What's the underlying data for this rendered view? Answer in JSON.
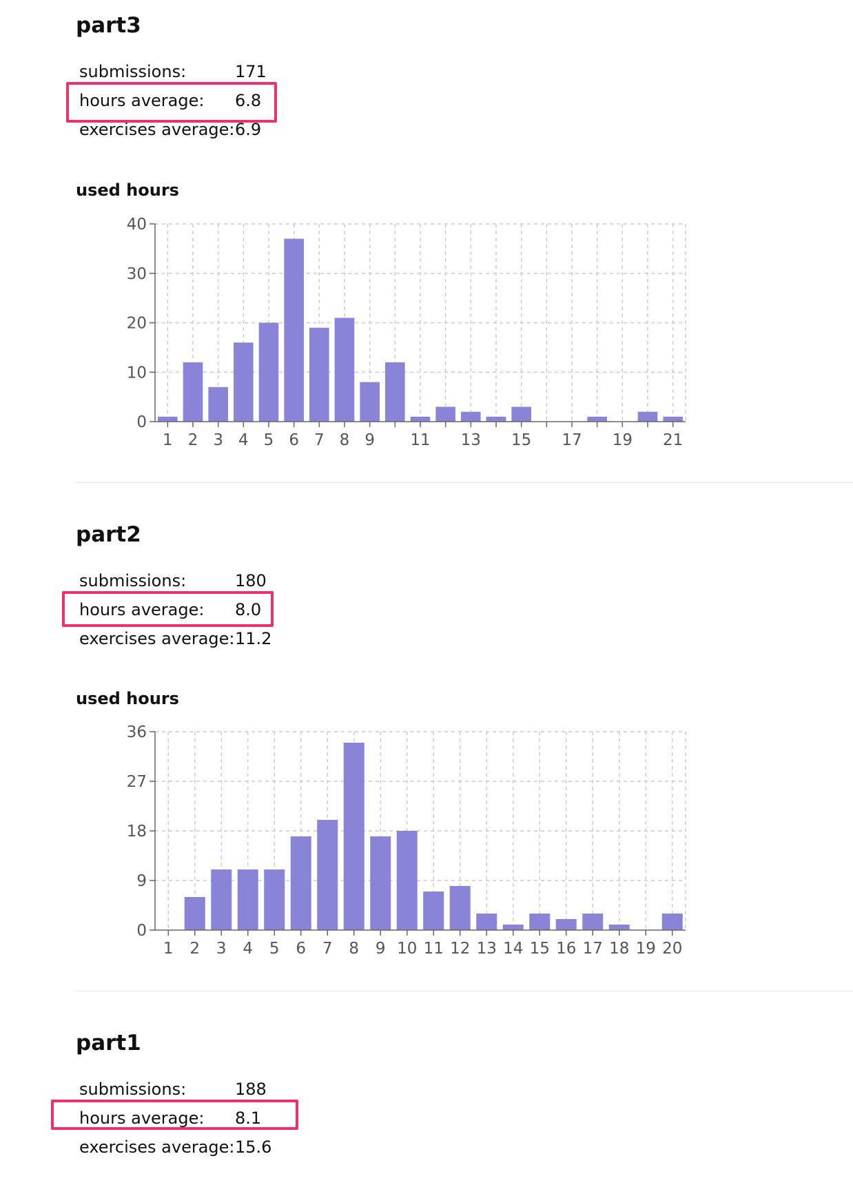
{
  "parts": [
    {
      "title": "part3",
      "stats": [
        {
          "label": "submissions:",
          "value": "171"
        },
        {
          "label": "hours average:",
          "value": "6.8"
        },
        {
          "label": "exercises average:",
          "value": "6.9"
        }
      ],
      "highlighted_stat": "hours average:"
    },
    {
      "title": "part2",
      "stats": [
        {
          "label": "submissions:",
          "value": "180"
        },
        {
          "label": "hours average:",
          "value": "8.0"
        },
        {
          "label": "exercises average:",
          "value": "11.2"
        }
      ],
      "highlighted_stat": "hours average:"
    },
    {
      "title": "part1",
      "stats": [
        {
          "label": "submissions:",
          "value": "188"
        },
        {
          "label": "hours average:",
          "value": "8.1"
        },
        {
          "label": "exercises average:",
          "value": "15.6"
        }
      ],
      "highlighted_stat": "hours average:"
    }
  ],
  "colors": {
    "bar": "#8984d8",
    "highlight": "#f0306a",
    "grid": "#cccccc",
    "axis": "#666666"
  },
  "chart_data": [
    {
      "type": "bar",
      "title": "used hours",
      "x": [
        1,
        2,
        3,
        4,
        5,
        6,
        7,
        8,
        9,
        10,
        11,
        12,
        13,
        14,
        15,
        16,
        17,
        18,
        19,
        20,
        21
      ],
      "values": [
        1,
        12,
        7,
        16,
        20,
        37,
        19,
        21,
        8,
        12,
        1,
        3,
        2,
        1,
        3,
        0,
        0,
        1,
        0,
        2,
        1
      ],
      "x_tick_labels": [
        "1",
        "2",
        "3",
        "4",
        "5",
        "6",
        "7",
        "8",
        "9",
        "11",
        "13",
        "15",
        "17",
        "19",
        "21"
      ],
      "y_ticks": [
        0,
        10,
        20,
        30,
        40
      ],
      "y_tick_labels": [
        "0",
        "10",
        "20",
        "30",
        "40"
      ],
      "ylim": [
        0,
        40
      ],
      "grid": true,
      "xlabel": "",
      "ylabel": ""
    },
    {
      "type": "bar",
      "title": "used hours",
      "x": [
        1,
        2,
        3,
        4,
        5,
        6,
        7,
        8,
        9,
        10,
        11,
        12,
        13,
        14,
        15,
        16,
        17,
        18,
        19,
        20
      ],
      "values": [
        0,
        6,
        11,
        11,
        11,
        17,
        20,
        34,
        17,
        18,
        7,
        8,
        3,
        1,
        3,
        2,
        3,
        1,
        0,
        3
      ],
      "x_tick_labels": [
        "1",
        "2",
        "3",
        "4",
        "5",
        "6",
        "7",
        "8",
        "9",
        "10",
        "11",
        "12",
        "13",
        "14",
        "15",
        "16",
        "17",
        "18",
        "19",
        "20"
      ],
      "y_ticks": [
        0,
        9,
        18,
        27,
        36
      ],
      "y_tick_labels": [
        "0",
        "9",
        "18",
        "27",
        "36"
      ],
      "ylim": [
        0,
        36
      ],
      "grid": true,
      "xlabel": "",
      "ylabel": ""
    }
  ]
}
